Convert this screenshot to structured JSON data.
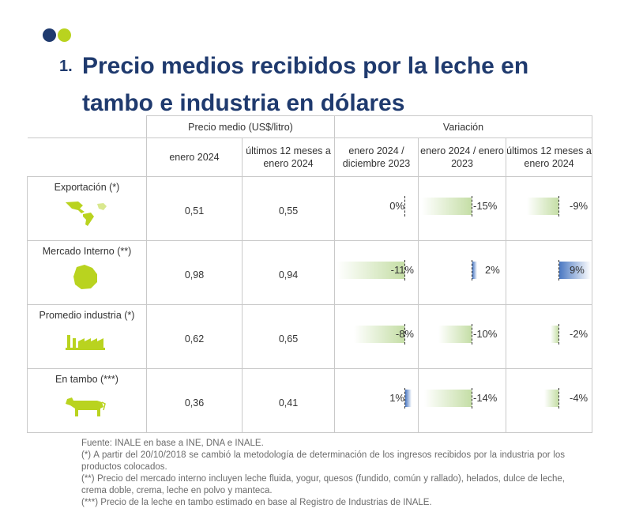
{
  "title": {
    "number": "1.",
    "text": "Precio medios recibidos por la leche en tambo e industria en dólares"
  },
  "table": {
    "group_price": "Precio medio (US$/litro)",
    "group_var": "Variación",
    "col_jan2024": "enero 2024",
    "col_last12": "últimos 12 meses a enero 2024",
    "col_var_dec": "enero 2024 / diciembre 2023",
    "col_var_jan": "enero 2024 / enero 2023",
    "col_var_12": "últimos 12 meses a enero 2024",
    "rows": [
      {
        "label": "Exportación (*)",
        "icon": "map-americas-icon",
        "jan2024": "0,51",
        "last12": "0,55",
        "var_dec": "0%",
        "var_dec_value": 0,
        "var_jan": "-15%",
        "var_jan_value": -15,
        "var_12": "-9%",
        "var_12_value": -9
      },
      {
        "label": "Mercado Interno (**)",
        "icon": "uruguay-map-icon",
        "jan2024": "0,98",
        "last12": "0,94",
        "var_dec": "-11%",
        "var_dec_value": -11,
        "var_jan": "2%",
        "var_jan_value": 2,
        "var_12": "9%",
        "var_12_value": 9
      },
      {
        "label": "Promedio industria (*)",
        "icon": "factory-icon",
        "jan2024": "0,62",
        "last12": "0,65",
        "var_dec": "-8%",
        "var_dec_value": -8,
        "var_jan": "-10%",
        "var_jan_value": -10,
        "var_12": "-2%",
        "var_12_value": -2
      },
      {
        "label": "En tambo (***)",
        "icon": "cow-icon",
        "jan2024": "0,36",
        "last12": "0,41",
        "var_dec": "1%",
        "var_dec_value": 1,
        "var_jan": "-14%",
        "var_jan_value": -14,
        "var_12": "-4%",
        "var_12_value": -4
      }
    ]
  },
  "notes": {
    "source": "Fuente: INALE en base a INE, DNA e INALE.",
    "n1": "(*) A partir del 20/10/2018 se cambió la metodología de determinación de los ingresos recibidos por la industria por los productos colocados.",
    "n2": "(**) Precio del mercado interno incluyen leche fluida, yogur, quesos (fundido, común y rallado), helados, dulce de leche, crema doble, crema, leche en polvo y manteca.",
    "n3": "(***) Precio de la leche en tambo estimado en base al Registro de Industrias de INALE."
  },
  "colors": {
    "navy": "#1f3a6e",
    "lime": "#b9d31f",
    "value_blue": "#2e75b6",
    "neg_bar": "#c5dea6",
    "pos_bar": "#4a78c2"
  }
}
